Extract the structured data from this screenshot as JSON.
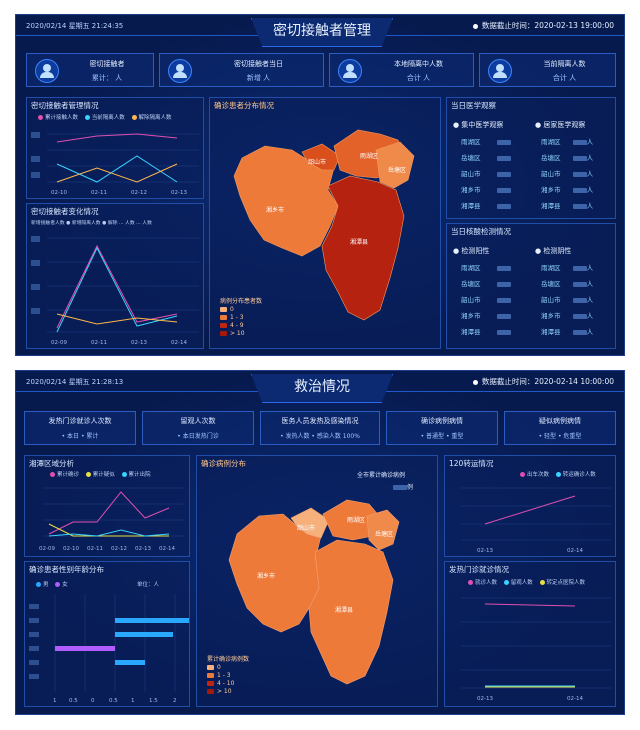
{
  "d1": {
    "datetime": "2020/02/14 星期五 21:24:35",
    "title": "密切接触者管理",
    "update_label": "数据截止时间：",
    "update_time": "2020-02-13 19:00:00",
    "stats": [
      {
        "label": "密切接触者",
        "value": "累计： 人"
      },
      {
        "label": "密切接触者当日",
        "value": "新增 人"
      },
      {
        "label": "本地隔离中人数",
        "value": "合计 人"
      },
      {
        "label": "当前隔离人数",
        "value": "合计 人"
      }
    ],
    "trend": {
      "title": "密切接触者管理情况",
      "legend": [
        "累计接触人数",
        "当前隔离人数",
        "解除隔离人数"
      ],
      "x": [
        "02-10",
        "02-11",
        "02-12",
        "02-13"
      ]
    },
    "change": {
      "title": "密切接触者变化情况",
      "legend": "新增接触者人数 ● 新增隔离人数 ● 解除 ... 人数 ... 人数",
      "x": [
        "02-09",
        "02-10",
        "02-11",
        "02-12",
        "02-13",
        "02-14"
      ]
    },
    "map": {
      "title": "确诊患者分布情况",
      "regions": [
        "湘潭县",
        "韶山市",
        "雨湖区",
        "岳塘区",
        "湘乡市",
        "湘潭县"
      ],
      "legend_title": "病例分布患者数",
      "legend": [
        "0",
        "1 - 3",
        "4 - 9",
        "> 10"
      ]
    },
    "med": {
      "title": "当日医学观察",
      "col1": "● 集中医学观察",
      "col2": "● 居家医学观察",
      "rows": [
        "雨湖区",
        "岳塘区",
        "韶山市",
        "湘乡市",
        "湘潭县"
      ],
      "unit": "人"
    },
    "test": {
      "title": "当日核酸检测情况",
      "col1": "● 检测阳性",
      "col2": "● 检测阴性",
      "rows": [
        "雨湖区",
        "岳塘区",
        "韶山市",
        "湘乡市",
        "湘潭县"
      ],
      "unit": "人"
    }
  },
  "d2": {
    "datetime": "2020/02/14 星期五 21:28:13",
    "title": "救治情况",
    "update_label": "数据截止时间：",
    "update_time": "2020-02-14 10:00:00",
    "stats": [
      {
        "label": "发热门诊就诊人次数",
        "value": "• 本日 • 累计"
      },
      {
        "label": "留观人次数",
        "value": "• 本日发热门诊"
      },
      {
        "label": "医务人员发热及感染情况",
        "value": "• 发热人数 • 感染人数 100%"
      },
      {
        "label": "确诊病例病情",
        "value": "• 普通型 • 重型"
      },
      {
        "label": "疑似病例病情",
        "value": "• 轻型 • 危重型"
      }
    ],
    "analysis": {
      "title": "湘潭区域分析",
      "legend": [
        "累计确诊",
        "累计疑似",
        "累计出院"
      ],
      "x": [
        "02-09",
        "02-10",
        "02-11",
        "02-12",
        "02-13",
        "02-14"
      ]
    },
    "age": {
      "title": "确诊患者性别年龄分布",
      "legend": [
        "男",
        "女"
      ],
      "unit": "单位：人",
      "xt": [
        "1",
        "0.5",
        "0",
        "0.5",
        "1",
        "1.5",
        "2"
      ]
    },
    "map": {
      "title": "确诊病例分布",
      "subtitle": "全市累计确诊病例",
      "unit": "例",
      "regions": [
        "湘潭县",
        "韶山市",
        "雨湖区",
        "岳塘区",
        "湘乡市",
        "湘潭县"
      ],
      "legend_title": "累计确诊病例数",
      "legend": [
        "0",
        "1 - 3",
        "4 - 10",
        "> 10"
      ]
    },
    "c120": {
      "title": "120转运情况",
      "legend": [
        "出车次数",
        "转运确诊人数"
      ],
      "x": [
        "02-13",
        "02-14"
      ]
    },
    "fever": {
      "title": "发热门诊就诊情况",
      "legend": [
        "就诊人数",
        "留观人数",
        "转定点医院人数"
      ],
      "x": [
        "02-13",
        "02-14"
      ]
    }
  },
  "colors": {
    "accent": "#2a6ae8",
    "map_light": "#f5b07c",
    "map_mid": "#ee7a3a",
    "map_dark": "#c0260e",
    "map_deep": "#a41a0a"
  }
}
